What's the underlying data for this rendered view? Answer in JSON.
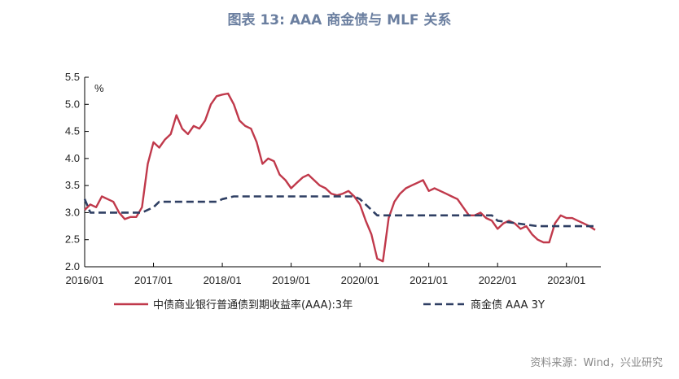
{
  "title": "图表 13: AAA 商金债与 MLF 关系",
  "source": "资料来源：Wind，兴业研究",
  "chart_data": {
    "type": "line",
    "unit": "%",
    "ylim": [
      2.0,
      5.5
    ],
    "y_ticks": [
      "2.0",
      "2.5",
      "3.0",
      "3.5",
      "4.0",
      "4.5",
      "5.0",
      "5.5"
    ],
    "x_ticks": [
      "2016/01",
      "2017/01",
      "2018/01",
      "2019/01",
      "2020/01",
      "2021/01",
      "2022/01",
      "2023/01"
    ],
    "xlim": [
      "2016/01",
      "2023/06"
    ],
    "grid": false,
    "legend": "bottom",
    "series": [
      {
        "name": "中债商业银行普通债到期收益率(AAA):3年",
        "color": "#c0394b",
        "style": "solid",
        "points": [
          [
            "2016/01",
            3.05
          ],
          [
            "2016/02",
            3.15
          ],
          [
            "2016/03",
            3.1
          ],
          [
            "2016/04",
            3.3
          ],
          [
            "2016/05",
            3.25
          ],
          [
            "2016/06",
            3.2
          ],
          [
            "2016/07",
            3.0
          ],
          [
            "2016/08",
            2.88
          ],
          [
            "2016/09",
            2.92
          ],
          [
            "2016/10",
            2.92
          ],
          [
            "2016/11",
            3.1
          ],
          [
            "2016/12",
            3.9
          ],
          [
            "2017/01",
            4.3
          ],
          [
            "2017/02",
            4.2
          ],
          [
            "2017/03",
            4.35
          ],
          [
            "2017/04",
            4.45
          ],
          [
            "2017/05",
            4.8
          ],
          [
            "2017/06",
            4.55
          ],
          [
            "2017/07",
            4.45
          ],
          [
            "2017/08",
            4.6
          ],
          [
            "2017/09",
            4.55
          ],
          [
            "2017/10",
            4.7
          ],
          [
            "2017/11",
            5.0
          ],
          [
            "2017/12",
            5.15
          ],
          [
            "2018/01",
            5.18
          ],
          [
            "2018/02",
            5.2
          ],
          [
            "2018/03",
            5.0
          ],
          [
            "2018/04",
            4.7
          ],
          [
            "2018/05",
            4.6
          ],
          [
            "2018/06",
            4.55
          ],
          [
            "2018/07",
            4.3
          ],
          [
            "2018/08",
            3.9
          ],
          [
            "2018/09",
            4.0
          ],
          [
            "2018/10",
            3.95
          ],
          [
            "2018/11",
            3.7
          ],
          [
            "2018/12",
            3.6
          ],
          [
            "2019/01",
            3.45
          ],
          [
            "2019/02",
            3.55
          ],
          [
            "2019/03",
            3.65
          ],
          [
            "2019/04",
            3.7
          ],
          [
            "2019/05",
            3.6
          ],
          [
            "2019/06",
            3.5
          ],
          [
            "2019/07",
            3.45
          ],
          [
            "2019/08",
            3.35
          ],
          [
            "2019/09",
            3.32
          ],
          [
            "2019/10",
            3.35
          ],
          [
            "2019/11",
            3.4
          ],
          [
            "2019/12",
            3.3
          ],
          [
            "2020/01",
            3.15
          ],
          [
            "2020/02",
            2.85
          ],
          [
            "2020/03",
            2.6
          ],
          [
            "2020/04",
            2.15
          ],
          [
            "2020/05",
            2.1
          ],
          [
            "2020/06",
            2.9
          ],
          [
            "2020/07",
            3.2
          ],
          [
            "2020/08",
            3.35
          ],
          [
            "2020/09",
            3.45
          ],
          [
            "2020/10",
            3.5
          ],
          [
            "2020/11",
            3.55
          ],
          [
            "2020/12",
            3.6
          ],
          [
            "2021/01",
            3.4
          ],
          [
            "2021/02",
            3.45
          ],
          [
            "2021/03",
            3.4
          ],
          [
            "2021/04",
            3.35
          ],
          [
            "2021/05",
            3.3
          ],
          [
            "2021/06",
            3.25
          ],
          [
            "2021/07",
            3.1
          ],
          [
            "2021/08",
            2.95
          ],
          [
            "2021/09",
            2.95
          ],
          [
            "2021/10",
            3.0
          ],
          [
            "2021/11",
            2.9
          ],
          [
            "2021/12",
            2.85
          ],
          [
            "2022/01",
            2.7
          ],
          [
            "2022/02",
            2.8
          ],
          [
            "2022/03",
            2.85
          ],
          [
            "2022/04",
            2.8
          ],
          [
            "2022/05",
            2.7
          ],
          [
            "2022/06",
            2.75
          ],
          [
            "2022/07",
            2.6
          ],
          [
            "2022/08",
            2.5
          ],
          [
            "2022/09",
            2.45
          ],
          [
            "2022/10",
            2.45
          ],
          [
            "2022/11",
            2.8
          ],
          [
            "2022/12",
            2.95
          ],
          [
            "2023/01",
            2.9
          ],
          [
            "2023/02",
            2.9
          ],
          [
            "2023/03",
            2.85
          ],
          [
            "2023/04",
            2.8
          ],
          [
            "2023/05",
            2.75
          ],
          [
            "2023/06",
            2.68
          ]
        ]
      },
      {
        "name": "商金债 AAA 3Y",
        "color": "#2f3f63",
        "style": "dashed",
        "points": [
          [
            "2016/01",
            3.25
          ],
          [
            "2016/02",
            3.0
          ],
          [
            "2016/11",
            3.0
          ],
          [
            "2016/12",
            3.05
          ],
          [
            "2017/01",
            3.1
          ],
          [
            "2017/02",
            3.2
          ],
          [
            "2017/12",
            3.2
          ],
          [
            "2018/01",
            3.25
          ],
          [
            "2018/03",
            3.3
          ],
          [
            "2019/12",
            3.3
          ],
          [
            "2020/01",
            3.25
          ],
          [
            "2020/02",
            3.15
          ],
          [
            "2020/04",
            2.95
          ],
          [
            "2021/12",
            2.95
          ],
          [
            "2022/01",
            2.85
          ],
          [
            "2022/08",
            2.75
          ],
          [
            "2023/06",
            2.75
          ]
        ]
      }
    ]
  }
}
